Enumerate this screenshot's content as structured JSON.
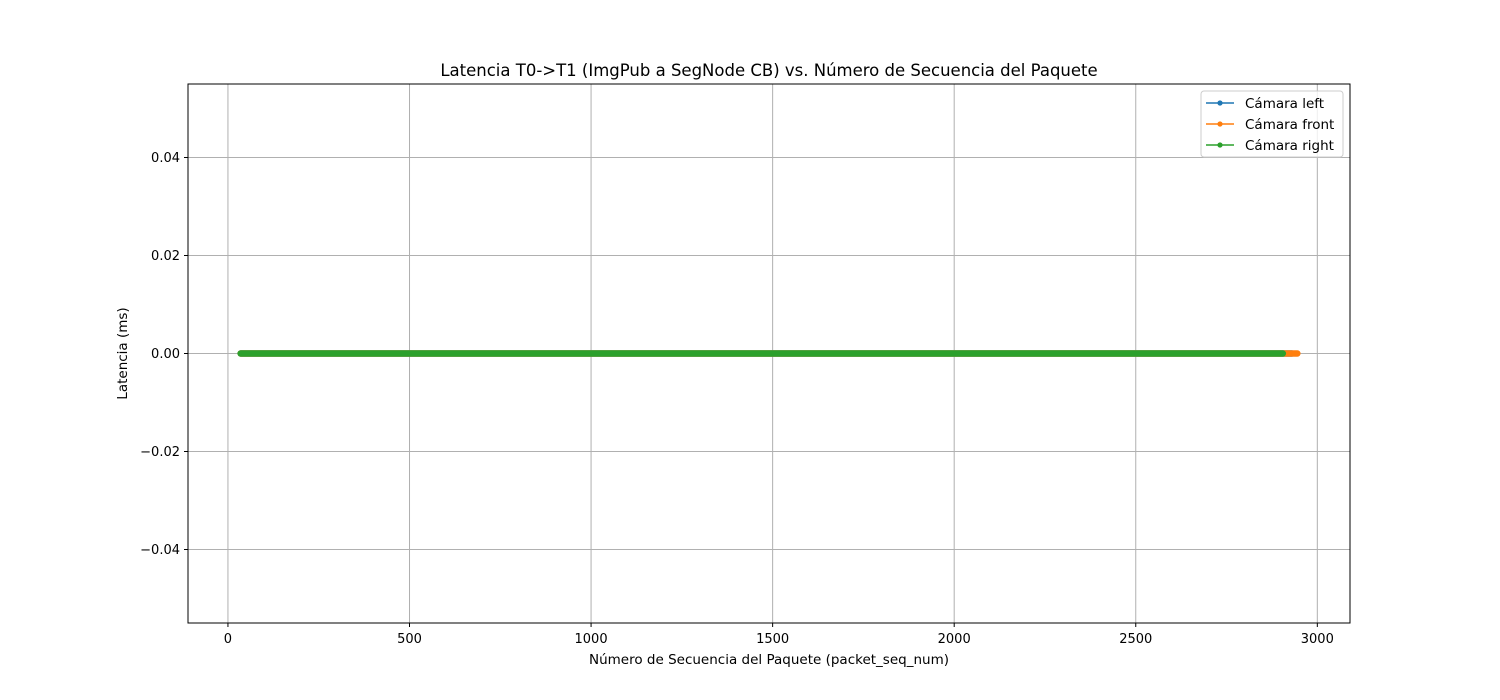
{
  "chart_data": {
    "type": "line",
    "title": "Latencia T0->T1 (ImgPub a SegNode CB) vs. Número de Secuencia del Paquete",
    "xlabel": "Número de Secuencia del Paquete (packet_seq_num)",
    "ylabel": "Latencia (ms)",
    "xlim": [
      -110,
      3090
    ],
    "ylim": [
      -0.055,
      0.055
    ],
    "xticks": [
      0,
      500,
      1000,
      1500,
      2000,
      2500,
      3000
    ],
    "xtick_labels": [
      "0",
      "500",
      "1000",
      "1500",
      "2000",
      "2500",
      "3000"
    ],
    "yticks": [
      -0.04,
      -0.02,
      0.0,
      0.02,
      0.04
    ],
    "ytick_labels": [
      "−0.04",
      "−0.02",
      "0.00",
      "0.02",
      "0.04"
    ],
    "grid": true,
    "legend_position": "top-right",
    "marker": "dot",
    "series": [
      {
        "name": "Cámara left",
        "color": "#1f77b4",
        "x_start": 35,
        "x_end": 2930,
        "y": 0.0
      },
      {
        "name": "Cámara front",
        "color": "#ff7f0e",
        "x_start": 35,
        "x_end": 2945,
        "y": 0.0
      },
      {
        "name": "Cámara right",
        "color": "#2ca02c",
        "x_start": 35,
        "x_end": 2905,
        "y": 0.0
      }
    ]
  }
}
